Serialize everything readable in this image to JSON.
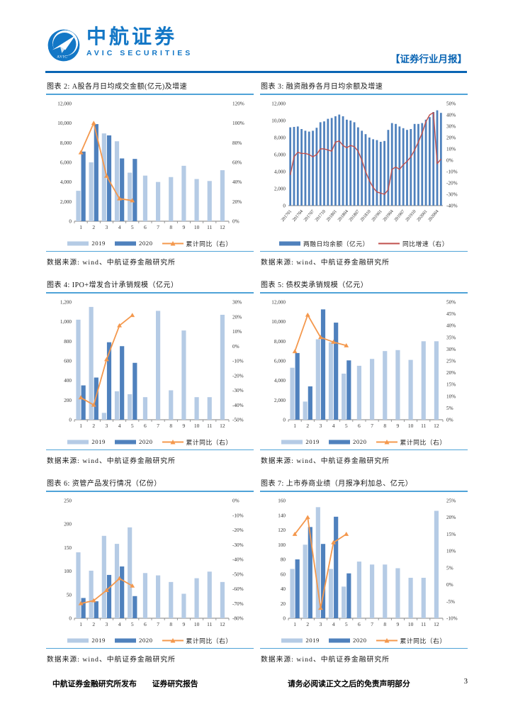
{
  "page": {
    "header": {
      "brand_cn": "中航证券",
      "brand_en": "AVIC  SECURITIES",
      "tag": "【证券行业月报】"
    },
    "source_label": "数据来源: wind、中航证券金融研究所",
    "footer": {
      "left1": "中航证券金融研究所发布",
      "left2": "证券研究报告",
      "disclaimer": "请务必阅读正文之后的免责声明部分",
      "page_number": "3"
    },
    "colors": {
      "bar_2019": "#b5cbe5",
      "bar_2020": "#4f81bd",
      "line_orange": "#f4984d",
      "line_red": "#c0504d",
      "rule_blue": "#4fa3d8",
      "header_blue": "#0a65b4",
      "brand_blue": "#1377c6"
    }
  },
  "chart_data": [
    {
      "id": "2",
      "title": "图表 2: A股各月日均成交金额(亿元)及增速",
      "type": "bar+line",
      "categories": [
        "1",
        "2",
        "3",
        "4",
        "5",
        "6",
        "7",
        "8",
        "9",
        "10",
        "11",
        "12"
      ],
      "ylim_left": [
        0,
        12000
      ],
      "yticks_left": [
        [
          0,
          "0"
        ],
        [
          2000,
          "2,000"
        ],
        [
          4000,
          "4,000"
        ],
        [
          6000,
          "6,000"
        ],
        [
          8000,
          "8,000"
        ],
        [
          10000,
          "10,000"
        ],
        [
          12000,
          "12,000"
        ]
      ],
      "ylim_right": [
        0,
        120
      ],
      "yticks_right": [
        [
          0,
          "0%"
        ],
        [
          20,
          "20%"
        ],
        [
          40,
          "40%"
        ],
        [
          60,
          "60%"
        ],
        [
          80,
          "80%"
        ],
        [
          100,
          "100%"
        ],
        [
          120,
          "120%"
        ]
      ],
      "series": [
        {
          "name": "2019",
          "type": "bar",
          "axis": "left",
          "color": "#b5cbe5",
          "values": [
            3100,
            6000,
            8950,
            8150,
            4950,
            4650,
            4000,
            4500,
            5650,
            4300,
            4100,
            5200
          ]
        },
        {
          "name": "2020",
          "type": "bar",
          "axis": "left",
          "color": "#4f81bd",
          "values": [
            7100,
            9900,
            8750,
            6400,
            6350
          ]
        },
        {
          "name": "累计同比（右）",
          "type": "line",
          "axis": "right",
          "color": "#f4984d",
          "width": 1.8,
          "marker": true,
          "values": [
            70,
            100,
            46,
            23,
            21
          ]
        }
      ]
    },
    {
      "id": "3",
      "title": "图表 3: 融资融券各月日均余额及增速",
      "type": "bar+line",
      "rotate_labels": true,
      "xtick_every": 3,
      "categories": [
        "201701",
        "201702",
        "201703",
        "201704",
        "201705",
        "201706",
        "201707",
        "201708",
        "201709",
        "201710",
        "201711",
        "201712",
        "201801",
        "201802",
        "201803",
        "201804",
        "201805",
        "201806",
        "201807",
        "201808",
        "201809",
        "201810",
        "201811",
        "201812",
        "201901",
        "201902",
        "201903",
        "201904",
        "201905",
        "201906",
        "201907",
        "201908",
        "201909",
        "201910",
        "201911",
        "201912",
        "202001",
        "202002",
        "202003",
        "202004",
        "202005"
      ],
      "ylim_left": [
        0,
        12000
      ],
      "yticks_left": [
        [
          0,
          "0"
        ],
        [
          2000,
          "2,000"
        ],
        [
          4000,
          "4,000"
        ],
        [
          6000,
          "6,000"
        ],
        [
          8000,
          "8,000"
        ],
        [
          10000,
          "10,000"
        ],
        [
          12000,
          "12,000"
        ]
      ],
      "ylim_right": [
        -40,
        50
      ],
      "yticks_right": [
        [
          -40,
          "-40%"
        ],
        [
          -30,
          "-30%"
        ],
        [
          -20,
          "-20%"
        ],
        [
          -10,
          "-10%"
        ],
        [
          0,
          "0%"
        ],
        [
          10,
          "10%"
        ],
        [
          20,
          "20%"
        ],
        [
          30,
          "30%"
        ],
        [
          40,
          "40%"
        ],
        [
          50,
          "50%"
        ]
      ],
      "series": [
        {
          "name": "两融日均余额（亿元）",
          "type": "bar",
          "axis": "left",
          "color": "#4f81bd",
          "values": [
            9200,
            9250,
            9300,
            9000,
            8800,
            8700,
            8800,
            9150,
            9800,
            9900,
            10200,
            10300,
            10500,
            10700,
            10500,
            10100,
            10000,
            9800,
            9200,
            8800,
            8400,
            8000,
            7800,
            7700,
            7500,
            7600,
            8900,
            9700,
            9600,
            9300,
            9100,
            8900,
            9000,
            9600,
            9600,
            9700,
            10100,
            10400,
            11000,
            11200,
            10900
          ]
        },
        {
          "name": "同比增速（右）",
          "type": "line",
          "axis": "right",
          "color": "#c0504d",
          "width": 1.4,
          "marker": false,
          "values": [
            -13,
            3,
            7,
            6,
            6,
            5,
            3,
            5,
            10,
            10,
            9,
            8,
            16,
            17,
            13,
            11,
            13,
            12,
            8,
            0,
            -10,
            -18,
            -24,
            -28,
            -29,
            -30,
            -26,
            -8,
            -6,
            -8,
            -4,
            -1,
            3,
            9,
            16,
            24,
            34,
            40,
            42,
            -3,
            1
          ]
        }
      ]
    },
    {
      "id": "4",
      "title": "图表 4: IPO+增发合计承销规模（亿元）",
      "type": "bar+line",
      "categories": [
        "1",
        "2",
        "3",
        "4",
        "5",
        "6",
        "7",
        "8",
        "9",
        "10",
        "11",
        "12"
      ],
      "ylim_left": [
        0,
        1200
      ],
      "yticks_left": [
        [
          0,
          "0"
        ],
        [
          200,
          "200"
        ],
        [
          400,
          "400"
        ],
        [
          600,
          "600"
        ],
        [
          800,
          "800"
        ],
        [
          1000,
          "1,000"
        ],
        [
          1200,
          "1,200"
        ]
      ],
      "ylim_right": [
        -50,
        30
      ],
      "yticks_right": [
        [
          -50,
          "-50%"
        ],
        [
          -40,
          "-40%"
        ],
        [
          -30,
          "-30%"
        ],
        [
          -20,
          "-20%"
        ],
        [
          -10,
          "-10%"
        ],
        [
          0,
          "0%"
        ],
        [
          10,
          "10%"
        ],
        [
          20,
          "20%"
        ],
        [
          30,
          "30%"
        ]
      ],
      "series": [
        {
          "name": "2019",
          "type": "bar",
          "axis": "left",
          "color": "#b5cbe5",
          "values": [
            1020,
            1150,
            70,
            290,
            260,
            230,
            1110,
            300,
            910,
            230,
            230,
            1070
          ]
        },
        {
          "name": "2020",
          "type": "bar",
          "axis": "left",
          "color": "#4f81bd",
          "values": [
            350,
            430,
            790,
            750,
            580
          ]
        },
        {
          "name": "累计同比（右）",
          "type": "line",
          "axis": "right",
          "color": "#f4984d",
          "width": 1.8,
          "marker": true,
          "values": [
            -35,
            -40,
            -9,
            14,
            21
          ]
        }
      ]
    },
    {
      "id": "5",
      "title": "图表 5: 债权类承销规模（亿元）",
      "type": "bar+line",
      "categories": [
        "1",
        "2",
        "3",
        "4",
        "5",
        "6",
        "7",
        "8",
        "9",
        "10",
        "11",
        "12"
      ],
      "ylim_left": [
        0,
        12000
      ],
      "yticks_left": [
        [
          0,
          "0"
        ],
        [
          2000,
          "2,000"
        ],
        [
          4000,
          "4,000"
        ],
        [
          6000,
          "6,000"
        ],
        [
          8000,
          "8,000"
        ],
        [
          10000,
          "10,000"
        ],
        [
          12000,
          "12,000"
        ]
      ],
      "ylim_right": [
        0,
        50
      ],
      "yticks_right": [
        [
          0,
          "0%"
        ],
        [
          5,
          "5%"
        ],
        [
          10,
          "10%"
        ],
        [
          15,
          "15%"
        ],
        [
          20,
          "20%"
        ],
        [
          25,
          "25%"
        ],
        [
          30,
          "30%"
        ],
        [
          35,
          "35%"
        ],
        [
          40,
          "40%"
        ],
        [
          45,
          "45%"
        ],
        [
          50,
          "50%"
        ]
      ],
      "series": [
        {
          "name": "2019",
          "type": "bar",
          "axis": "left",
          "color": "#b5cbe5",
          "values": [
            5300,
            1850,
            8200,
            7900,
            4700,
            5500,
            6200,
            7000,
            7100,
            6100,
            8000,
            8000
          ]
        },
        {
          "name": "2020",
          "type": "bar",
          "axis": "left",
          "color": "#4f81bd",
          "values": [
            6800,
            3400,
            11250,
            9900,
            6050
          ]
        },
        {
          "name": "累计同比（右）",
          "type": "line",
          "axis": "right",
          "color": "#f4984d",
          "width": 1.8,
          "marker": true,
          "values": [
            29,
            44.5,
            35,
            33,
            31.5
          ]
        }
      ]
    },
    {
      "id": "6",
      "title": "图表 6: 资管产品发行情况（亿份）",
      "type": "bar+line",
      "categories": [
        "1",
        "2",
        "3",
        "4",
        "5",
        "6",
        "7",
        "8",
        "9",
        "10",
        "11",
        "12"
      ],
      "ylim_left": [
        0,
        250
      ],
      "yticks_left": [
        [
          0,
          "0"
        ],
        [
          50,
          "50"
        ],
        [
          100,
          "100"
        ],
        [
          150,
          "150"
        ],
        [
          200,
          "200"
        ],
        [
          250,
          "250"
        ]
      ],
      "ylim_right": [
        -80,
        0
      ],
      "yticks_right": [
        [
          -80,
          "-80%"
        ],
        [
          -70,
          "-70%"
        ],
        [
          -60,
          "-60%"
        ],
        [
          -50,
          "-50%"
        ],
        [
          -40,
          "-40%"
        ],
        [
          -30,
          "-30%"
        ],
        [
          -20,
          "-20%"
        ],
        [
          -10,
          "-10%"
        ],
        [
          0,
          "0%"
        ]
      ],
      "series": [
        {
          "name": "2019",
          "type": "bar",
          "axis": "left",
          "color": "#b5cbe5",
          "values": [
            140,
            101,
            175,
            158,
            193,
            96,
            91,
            77,
            52,
            85,
            99,
            77
          ]
        },
        {
          "name": "2020",
          "type": "bar",
          "axis": "left",
          "color": "#4f81bd",
          "values": [
            43,
            36,
            92,
            110,
            47
          ]
        },
        {
          "name": "累计同比（右）",
          "type": "line",
          "axis": "right",
          "color": "#f4984d",
          "width": 1.8,
          "marker": true,
          "values": [
            -70,
            -68,
            -61,
            -53,
            -58
          ]
        }
      ]
    },
    {
      "id": "7",
      "title": "图表 7: 上市券商业绩（月报净利加总、亿元）",
      "type": "bar+line",
      "categories": [
        "1",
        "2",
        "3",
        "4",
        "5",
        "6",
        "7",
        "8",
        "9",
        "10",
        "11",
        "12"
      ],
      "ylim_left": [
        0,
        160
      ],
      "yticks_left": [
        [
          0,
          "0"
        ],
        [
          20,
          "20"
        ],
        [
          40,
          "40"
        ],
        [
          60,
          "60"
        ],
        [
          80,
          "80"
        ],
        [
          100,
          "100"
        ],
        [
          120,
          "120"
        ],
        [
          140,
          "140"
        ],
        [
          160,
          "160"
        ]
      ],
      "ylim_right": [
        -10,
        25
      ],
      "yticks_right": [
        [
          -10,
          "-10%"
        ],
        [
          -5,
          "-5%"
        ],
        [
          0,
          "0%"
        ],
        [
          5,
          "5%"
        ],
        [
          10,
          "10%"
        ],
        [
          15,
          "15%"
        ],
        [
          20,
          "20%"
        ],
        [
          25,
          "25%"
        ]
      ],
      "series": [
        {
          "name": "2019",
          "type": "bar",
          "axis": "left",
          "color": "#b5cbe5",
          "values": [
            67,
            100,
            151,
            67,
            43,
            77,
            73,
            73,
            68,
            55,
            55,
            146
          ]
        },
        {
          "name": "2020",
          "type": "bar",
          "axis": "left",
          "color": "#4f81bd",
          "values": [
            80,
            124,
            101,
            138,
            61
          ]
        },
        {
          "name": "累计同比（右）",
          "type": "line",
          "axis": "right",
          "color": "#f4984d",
          "width": 1.8,
          "marker": true,
          "values": [
            15,
            20,
            -7,
            12.5,
            15
          ]
        }
      ]
    }
  ]
}
